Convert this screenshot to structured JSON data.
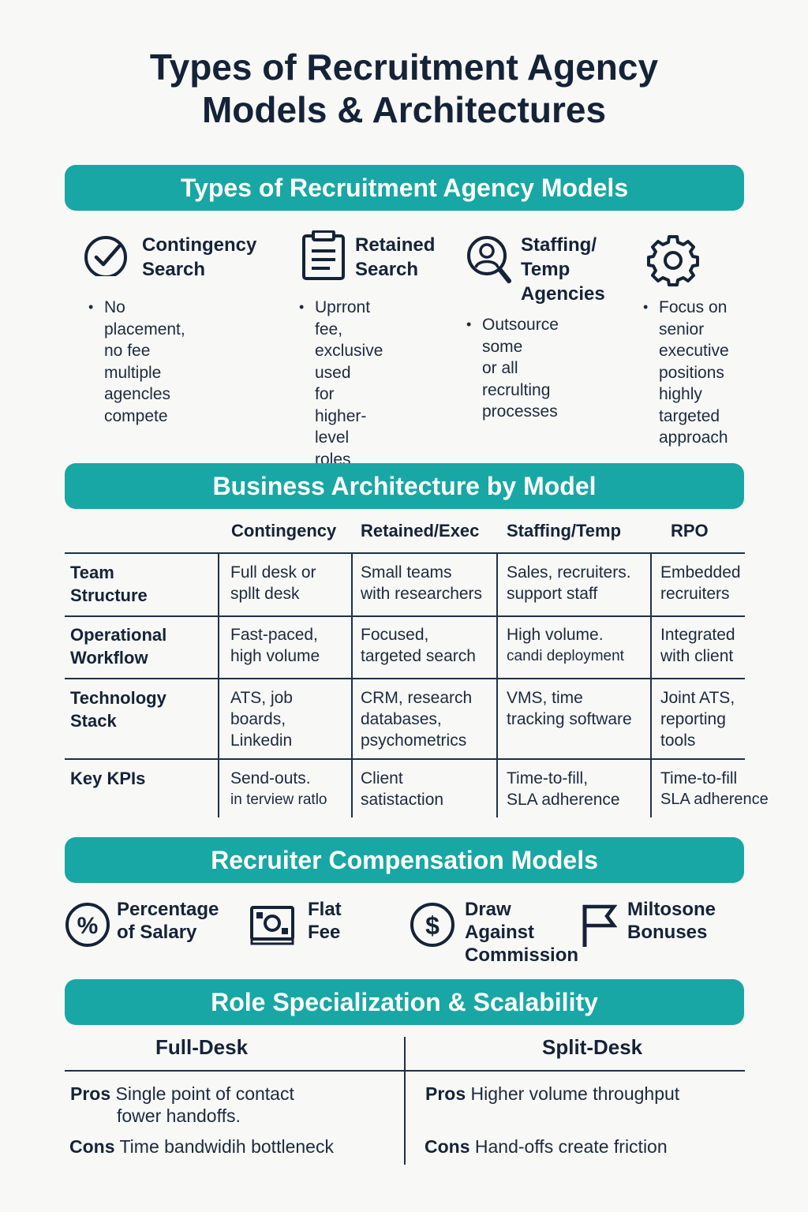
{
  "title": {
    "line1": "Types of Recruitment Agency",
    "line2": "Models & Architectures"
  },
  "sections": {
    "models": "Types of Recruitment Agency Models",
    "architecture": "Business Architecture by Model",
    "compensation": "Recruiter Compensation Models",
    "specialization": "Role Specialization & Scalability"
  },
  "models": [
    {
      "icon": "check-circle-icon",
      "title": [
        "Contingency",
        "Search"
      ],
      "bullet": [
        "No placement, no fee",
        "multiple agencles",
        "compete"
      ]
    },
    {
      "icon": "clipboard-icon",
      "title": [
        "Retained",
        "Search"
      ],
      "bullet": [
        "Uprront fee,",
        "exclusive used",
        "for higher-level",
        "roles"
      ]
    },
    {
      "icon": "magnifier-person-icon",
      "title": [
        "Staffing/",
        "Temp",
        "Agencies"
      ],
      "bullet": [
        "Outsource some",
        "or all recrulting",
        "processes"
      ]
    },
    {
      "icon": "gear-icon",
      "title": [],
      "bullet": [
        "Focus on",
        "senior",
        "executive",
        "positions",
        "highly",
        "targeted",
        "approach"
      ]
    }
  ],
  "architecture": {
    "columns": [
      "Contingency",
      "Retained/Exec",
      "Staffing/Temp",
      "RPO"
    ],
    "rows": [
      {
        "label": [
          "Team",
          "Structure"
        ],
        "cells": [
          [
            "Full desk or",
            "spllt desk"
          ],
          [
            "Small teams",
            "with researchers"
          ],
          [
            "Sales, recruiters.",
            "support staff"
          ],
          [
            "Embedded",
            "recruiters"
          ]
        ]
      },
      {
        "label": [
          "Operational",
          "Workflow"
        ],
        "cells": [
          [
            "Fast-paced,",
            "high volume"
          ],
          [
            "Focused,",
            "targeted search"
          ],
          [
            "High volume.",
            "candi deployment"
          ],
          [
            "Integrated",
            "with client"
          ]
        ]
      },
      {
        "label": [
          "Technology",
          "Stack"
        ],
        "cells": [
          [
            "ATS, job",
            "boards,",
            "Linkedin"
          ],
          [
            "CRM, research",
            "databases,",
            "psychometrics"
          ],
          [
            "VMS, time",
            "tracking software"
          ],
          [
            "Joint ATS,",
            "reporting",
            "tools"
          ]
        ]
      },
      {
        "label": [
          "Key KPIs"
        ],
        "cells": [
          [
            "Send-outs.",
            "in terview ratlo"
          ],
          [
            "Client",
            "satistaction"
          ],
          [
            "Time-to-fill,",
            "SLA adherence"
          ],
          [
            "Time-to-fill",
            "SLA adherence"
          ]
        ]
      }
    ]
  },
  "compensation": [
    {
      "icon": "percent-circle-icon",
      "label": [
        "Percentage",
        "of Salary"
      ]
    },
    {
      "icon": "banknote-icon",
      "label": [
        "Flat",
        "Fee"
      ]
    },
    {
      "icon": "dollar-circle-icon",
      "label": [
        "Draw",
        "Against",
        "Commission"
      ]
    },
    {
      "icon": "flag-icon",
      "label": [
        "Miltosone",
        "Bonuses"
      ]
    }
  ],
  "desks": {
    "full": {
      "heading": "Full-Desk",
      "pros_label": "Pros",
      "pros": [
        "Single point of contact",
        "fower handoffs."
      ],
      "cons_label": "Cons",
      "cons": "Time bandwidih bottleneck"
    },
    "split": {
      "heading": "Split-Desk",
      "pros_label": "Pros",
      "pros": [
        "Higher volume throughput"
      ],
      "cons_label": "Cons",
      "cons": "Hand-offs create friction"
    }
  },
  "colors": {
    "accent": "#18a7a4",
    "text": "#152338",
    "background": "#f8f8f6"
  }
}
